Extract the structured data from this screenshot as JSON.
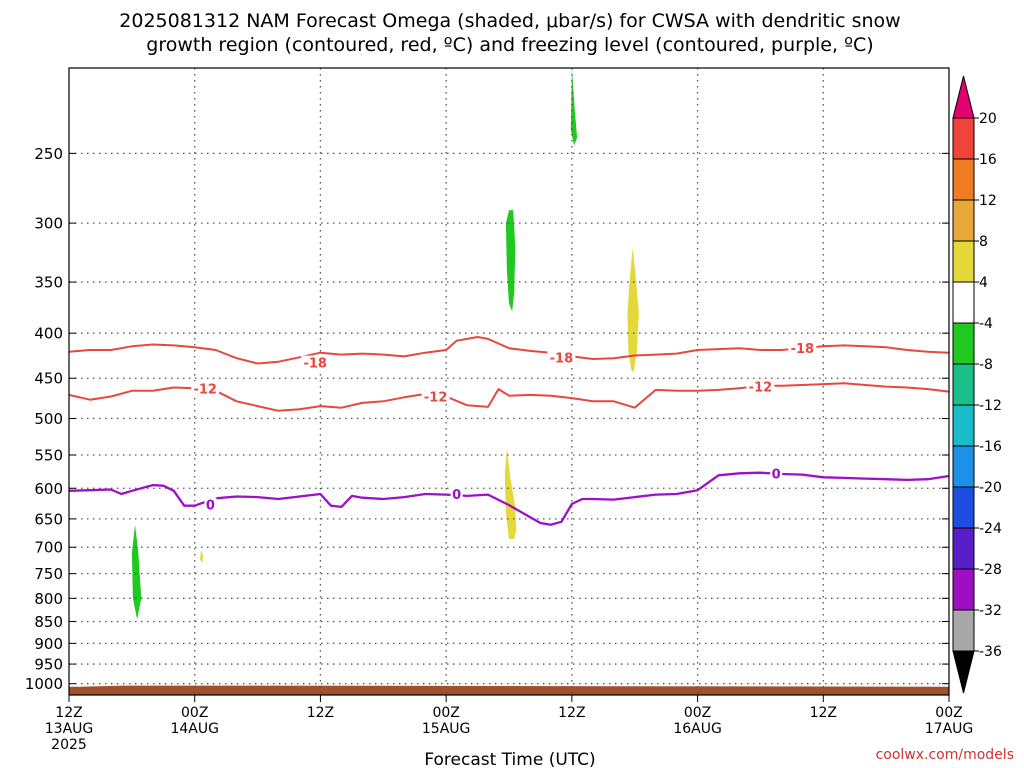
{
  "title_line1": "2025081312 NAM Forecast Omega (shaded, μbar/s) for CWSA with dendritic snow",
  "title_line2": "growth region (contoured, red, ºC) and freezing level (contoured, purple, ºC)",
  "credit": "coolwx.com/models",
  "colors": {
    "red_contour": "#e8473f",
    "purple_contour": "#9b10c8",
    "terrain": "#a0522d",
    "grid": "#555555"
  },
  "chart_data": {
    "type": "heatmap",
    "xlabel": "Forecast Time (UTC)",
    "x_range_hours": [
      0,
      84
    ],
    "x_ticks": [
      {
        "hour": 0,
        "lines": [
          "12Z",
          "13AUG",
          "2025"
        ]
      },
      {
        "hour": 12,
        "lines": [
          "00Z",
          "14AUG"
        ]
      },
      {
        "hour": 24,
        "lines": [
          "12Z"
        ]
      },
      {
        "hour": 36,
        "lines": [
          "00Z",
          "15AUG"
        ]
      },
      {
        "hour": 48,
        "lines": [
          "12Z"
        ]
      },
      {
        "hour": 60,
        "lines": [
          "00Z",
          "16AUG"
        ]
      },
      {
        "hour": 72,
        "lines": [
          "12Z"
        ]
      },
      {
        "hour": 84,
        "lines": [
          "00Z",
          "17AUG"
        ]
      }
    ],
    "y_scale": "log-pressure",
    "y_range_hpa": [
      200,
      1030
    ],
    "y_ticks": [
      250,
      300,
      350,
      400,
      450,
      500,
      550,
      600,
      650,
      700,
      750,
      800,
      850,
      900,
      950,
      1000
    ],
    "colorbar": {
      "unit": "μbar/s",
      "labels": [
        "20",
        "16",
        "12",
        "8",
        "4",
        "-4",
        "-8",
        "-12",
        "-16",
        "-20",
        "-24",
        "-28",
        "-32",
        "-36"
      ],
      "boundaries": [
        20,
        16,
        12,
        8,
        4,
        -4,
        -8,
        -12,
        -16,
        -20,
        -24,
        -28,
        -32,
        -36
      ],
      "colors": [
        "#e3006f",
        "#f0433a",
        "#ef7b23",
        "#e8a83a",
        "#e4d83a",
        "#ffffff",
        "#1fc91f",
        "#1cbf8a",
        "#1abccb",
        "#1d90e8",
        "#1c4ee0",
        "#5a1ec8",
        "#9e0fc4",
        "#a8a8a8",
        "#000000"
      ]
    },
    "contours": [
      {
        "level": "-18",
        "color": "red",
        "x": [
          0,
          2,
          4,
          6,
          8,
          10,
          12,
          14,
          16,
          18,
          20,
          22,
          24,
          26,
          28,
          30,
          32,
          34,
          36,
          37,
          38,
          39,
          40,
          41,
          42,
          44,
          46,
          48,
          50,
          52,
          54,
          56,
          58,
          60,
          62,
          64,
          66,
          68,
          70,
          72,
          74,
          76,
          78,
          80,
          82,
          84
        ],
        "p": [
          420,
          418,
          418,
          414,
          412,
          413,
          415,
          418,
          427,
          433,
          431,
          426,
          421,
          423,
          422,
          423,
          425,
          421,
          418,
          408,
          406,
          404,
          406,
          411,
          416,
          419,
          421,
          425,
          428,
          427,
          424,
          423,
          422,
          418,
          417,
          416,
          418,
          418,
          416,
          414,
          413,
          414,
          415,
          418,
          420,
          421
        ]
      },
      {
        "level": "-12",
        "color": "red",
        "x": [
          0,
          2,
          4,
          6,
          8,
          10,
          12,
          14,
          16,
          18,
          20,
          22,
          24,
          26,
          28,
          30,
          32,
          34,
          36,
          38,
          40,
          41,
          42,
          44,
          46,
          48,
          50,
          52,
          54,
          56,
          58,
          60,
          62,
          64,
          66,
          68,
          70,
          72,
          74,
          76,
          78,
          80,
          82,
          84
        ],
        "p": [
          470,
          476,
          472,
          465,
          465,
          461,
          462,
          465,
          478,
          484,
          490,
          488,
          484,
          486,
          480,
          478,
          473,
          469,
          472,
          483,
          485,
          463,
          471,
          470,
          471,
          474,
          478,
          478,
          486,
          464,
          465,
          465,
          464,
          462,
          459,
          459,
          458,
          457,
          456,
          458,
          460,
          461,
          463,
          466
        ]
      },
      {
        "level": "0",
        "color": "purple",
        "x": [
          0,
          2,
          4,
          5,
          6,
          8,
          9,
          10,
          11,
          12,
          14,
          16,
          18,
          20,
          22,
          24,
          25,
          26,
          27,
          28,
          30,
          32,
          34,
          36,
          38,
          40,
          42,
          44,
          45,
          46,
          47,
          48,
          49,
          50,
          52,
          54,
          56,
          58,
          60,
          62,
          64,
          66,
          68,
          70,
          72,
          74,
          76,
          78,
          80,
          82,
          84
        ],
        "p": [
          604,
          603,
          602,
          609,
          604,
          595,
          596,
          604,
          628,
          628,
          616,
          613,
          614,
          617,
          613,
          609,
          628,
          630,
          612,
          615,
          617,
          614,
          609,
          610,
          612,
          610,
          627,
          647,
          657,
          660,
          655,
          625,
          617,
          617,
          618,
          614,
          610,
          609,
          603,
          580,
          577,
          576,
          578,
          579,
          583,
          584,
          585,
          586,
          587,
          586,
          581
        ]
      }
    ],
    "contour_labels": [
      {
        "text": "-18",
        "x": 23.5,
        "p": 432
      },
      {
        "text": "-18",
        "x": 47.0,
        "p": 426
      },
      {
        "text": "-18",
        "x": 70.0,
        "p": 416
      },
      {
        "text": "-12",
        "x": 13.0,
        "p": 462
      },
      {
        "text": "-12",
        "x": 35.0,
        "p": 472
      },
      {
        "text": "-12",
        "x": 66.0,
        "p": 460
      },
      {
        "text": "0",
        "x": 13.5,
        "p": 626
      },
      {
        "text": "0",
        "x": 37.0,
        "p": 609
      },
      {
        "text": "0",
        "x": 67.5,
        "p": 577
      }
    ],
    "shaded_regions": [
      {
        "value": "-4 to -8",
        "color": "green",
        "x": [
          6.3,
          6.6,
          6.9,
          6.5,
          6.1,
          6.0,
          6.3
        ],
        "p": [
          660,
          705,
          800,
          845,
          800,
          710,
          660
        ]
      },
      {
        "value": "-4 to -8",
        "color": "green",
        "x": [
          48.0,
          48.3,
          48.5,
          48.2,
          47.9,
          48.0
        ],
        "p": [
          200,
          225,
          240,
          245,
          235,
          200
        ]
      },
      {
        "value": "-4 to -8",
        "color": "green",
        "x": [
          42.0,
          42.4,
          42.6,
          42.5,
          42.3,
          42.0,
          41.8,
          41.7,
          42.0
        ],
        "p": [
          290,
          290,
          320,
          360,
          378,
          370,
          340,
          300,
          290
        ]
      },
      {
        "value": "4 to 8",
        "color": "yellow",
        "x": [
          53.8,
          54.1,
          54.4,
          54.2,
          53.9,
          53.7,
          53.4,
          53.3,
          53.5,
          53.8
        ],
        "p": [
          320,
          345,
          380,
          420,
          442,
          442,
          420,
          380,
          350,
          320
        ]
      },
      {
        "value": "4 to 8",
        "color": "yellow",
        "x": [
          41.8,
          42.1,
          42.6,
          42.7,
          42.5,
          42.0,
          41.7,
          41.6,
          41.8
        ],
        "p": [
          540,
          580,
          630,
          670,
          685,
          685,
          640,
          580,
          540
        ]
      },
      {
        "value": "4 to 8",
        "color": "yellow",
        "x": [
          12.6,
          12.8,
          12.7,
          12.5,
          12.6
        ],
        "p": [
          705,
          715,
          730,
          722,
          705
        ]
      }
    ],
    "terrain": {
      "x": [
        0,
        1,
        5,
        18,
        84
      ],
      "p_top": [
        1008,
        1008,
        1005,
        1005,
        1008
      ]
    }
  }
}
